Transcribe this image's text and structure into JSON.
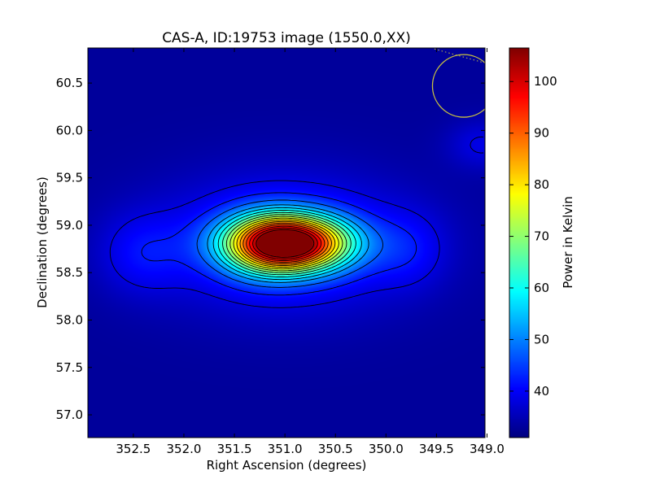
{
  "chart_data": {
    "type": "heatmap",
    "title": "CAS-A, ID:19753 image (1550.0,XX)",
    "xlabel": "Right Ascension (degrees)",
    "ylabel": "Declination (degrees)",
    "xlim": [
      352.95,
      349.02
    ],
    "ylim": [
      56.76,
      60.87
    ],
    "x_ticks": [
      352.5,
      352.0,
      351.5,
      351.0,
      350.5,
      350.0,
      349.5,
      349.0
    ],
    "x_tick_labels": [
      "352.5",
      "352.0",
      "351.5",
      "351.0",
      "350.5",
      "350.0",
      "349.5",
      "349.0"
    ],
    "y_ticks": [
      57.0,
      57.5,
      58.0,
      58.5,
      59.0,
      59.5,
      60.0,
      60.5
    ],
    "y_tick_labels": [
      "57.0",
      "57.5",
      "58.0",
      "58.5",
      "59.0",
      "59.5",
      "60.0",
      "60.5"
    ],
    "colorbar": {
      "label": "Power in Kelvin",
      "colormap": "jet",
      "range": [
        31,
        106.5
      ],
      "ticks": [
        40,
        50,
        60,
        70,
        80,
        90,
        100
      ],
      "tick_labels": [
        "40",
        "50",
        "60",
        "70",
        "80",
        "90",
        "100"
      ]
    },
    "background_level": 33,
    "source_components": [
      {
        "ra": 350.95,
        "dec": 58.81,
        "peak": 67,
        "sigma_ra": 0.4,
        "sigma_dec": 0.2
      },
      {
        "ra": 351.2,
        "dec": 58.79,
        "peak": 13,
        "sigma_ra": 0.3,
        "sigma_dec": 0.24
      },
      {
        "ra": 351.0,
        "dec": 58.8,
        "peak": 12,
        "sigma_ra": 0.85,
        "sigma_dec": 0.48
      },
      {
        "ra": 352.42,
        "dec": 58.7,
        "peak": 6,
        "sigma_ra": 0.3,
        "sigma_dec": 0.3
      },
      {
        "ra": 349.77,
        "dec": 58.74,
        "peak": 5,
        "sigma_ra": 0.26,
        "sigma_dec": 0.28
      },
      {
        "ra": 349.05,
        "dec": 59.85,
        "peak": 5.5,
        "sigma_ra": 0.24,
        "sigma_dec": 0.18
      }
    ],
    "contour_levels": [
      38,
      42,
      47,
      52,
      56,
      60,
      64,
      68,
      72,
      76,
      80,
      84,
      88,
      92,
      96,
      100,
      104
    ],
    "beam_circle": {
      "ra": 349.23,
      "dec": 60.47,
      "radius_dec": 0.33,
      "color": "#c8c040"
    },
    "colors": {
      "axis": "#000000",
      "contour": "#000000",
      "beam": "#c8c040",
      "dotted_line": "#c8c040"
    }
  }
}
